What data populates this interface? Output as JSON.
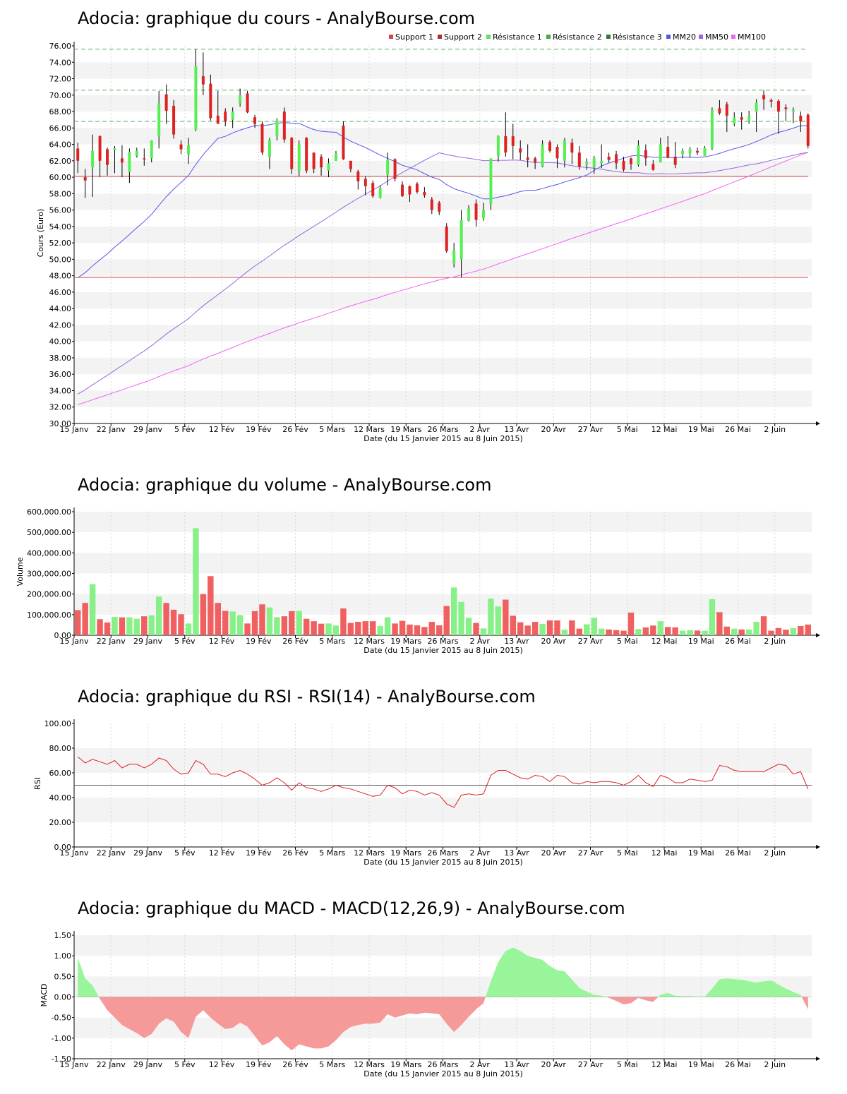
{
  "colors": {
    "up": "#55ee55",
    "down": "#dd2222",
    "vol_up": "#88f088",
    "vol_down": "#f06060",
    "support": "#cc4444",
    "resistance": "#55aa55",
    "mm20": "#5555ee",
    "mm50": "#9966dd",
    "mm100": "#ee66ee",
    "rsi_line": "#dd2222",
    "band": "#f3f3f3",
    "macd_pos": "#99f599",
    "macd_neg": "#f59999"
  },
  "shared": {
    "xlabel": "Date (du 15 Janvier 2015 au 8 Juin 2015)",
    "date_ticks": [
      "15 Janv",
      "22 Janv",
      "29 Janv",
      "5 Fév",
      "12 Fév",
      "19 Fév",
      "26 Fév",
      "5 Mars",
      "12 Mars",
      "19 Mars",
      "26 Mars",
      "2 Avr",
      "13 Avr",
      "20 Avr",
      "27 Avr",
      "5 Mai",
      "12 Mai",
      "19 Mai",
      "26 Mai",
      "2 Juin"
    ],
    "date_tick_index": [
      0,
      5,
      10,
      15,
      20,
      25,
      30,
      35,
      40,
      45,
      50,
      55,
      60,
      65,
      70,
      75,
      80,
      85,
      90,
      95
    ]
  },
  "chart_data": [
    {
      "type": "candlestick",
      "title": "Adocia: graphique du cours - AnalyBourse.com",
      "ylabel": "Cours (Euro)",
      "ylim": [
        30,
        76
      ],
      "yticks": [
        "30.00",
        "32.00",
        "34.00",
        "36.00",
        "38.00",
        "40.00",
        "42.00",
        "44.00",
        "46.00",
        "48.00",
        "50.00",
        "52.00",
        "54.00",
        "56.00",
        "58.00",
        "60.00",
        "62.00",
        "64.00",
        "66.00",
        "68.00",
        "70.00",
        "72.00",
        "74.00",
        "76.00"
      ],
      "legend": [
        "Support 1",
        "Support 2",
        "Résistance 1",
        "Résistance 2",
        "Résistance 3",
        "MM20",
        "MM50",
        "MM100"
      ],
      "supports": [
        60.1,
        47.8
      ],
      "resistances": [
        66.8,
        70.6,
        75.6
      ],
      "candles": [
        [
          63.5,
          62.0,
          64.2,
          60.5
        ],
        [
          60.0,
          59.6,
          61.0,
          57.5
        ],
        [
          61.2,
          63.2,
          65.2,
          57.6
        ],
        [
          65.0,
          62.0,
          65.1,
          60.0
        ],
        [
          63.4,
          61.5,
          63.6,
          60.2
        ],
        [
          63.3,
          63.5,
          63.8,
          60.5
        ],
        [
          62.3,
          61.8,
          63.9,
          60.0
        ],
        [
          60.6,
          63.1,
          63.5,
          59.3
        ],
        [
          62.6,
          63.2,
          63.6,
          62.4
        ],
        [
          62.3,
          62.2,
          63.5,
          61.4
        ],
        [
          62.3,
          64.5,
          64.5,
          61.8
        ],
        [
          65.0,
          69.0,
          70.5,
          63.5
        ],
        [
          70.1,
          68.1,
          71.3,
          66.5
        ],
        [
          68.7,
          65.2,
          69.4,
          64.7
        ],
        [
          64.0,
          63.4,
          64.5,
          62.8
        ],
        [
          62.8,
          63.9,
          64.8,
          61.6
        ],
        [
          65.8,
          73.5,
          75.6,
          65.6
        ],
        [
          72.3,
          71.3,
          75.2,
          70.0
        ],
        [
          71.4,
          67.2,
          72.5,
          66.9
        ],
        [
          67.5,
          66.5,
          70.5,
          66.5
        ],
        [
          68.0,
          66.8,
          68.4,
          66.2
        ],
        [
          67.0,
          68.0,
          68.5,
          66.0
        ],
        [
          69.0,
          70.0,
          70.8,
          68.6
        ],
        [
          70.2,
          67.9,
          70.5,
          67.8
        ],
        [
          67.3,
          66.5,
          67.6,
          66.0
        ],
        [
          66.5,
          63.0,
          66.8,
          62.7
        ],
        [
          62.5,
          64.5,
          64.8,
          61.0
        ],
        [
          65.0,
          66.9,
          67.2,
          64.5
        ],
        [
          68.0,
          64.6,
          68.5,
          64.2
        ],
        [
          64.8,
          61.0,
          64.9,
          60.4
        ],
        [
          60.8,
          64.0,
          64.5,
          60.1
        ],
        [
          64.8,
          60.8,
          64.9,
          60.5
        ],
        [
          63.0,
          61.0,
          63.0,
          60.5
        ],
        [
          62.5,
          61.2,
          62.8,
          60.2
        ],
        [
          60.8,
          61.7,
          62.3,
          60.0
        ],
        [
          62.0,
          62.9,
          63.2,
          62.0
        ],
        [
          66.3,
          62.2,
          66.8,
          62.1
        ],
        [
          62.0,
          61.0,
          62.0,
          60.6
        ],
        [
          60.7,
          59.5,
          60.9,
          58.5
        ],
        [
          59.8,
          58.9,
          60.1,
          57.8
        ],
        [
          59.3,
          57.7,
          59.6,
          57.5
        ],
        [
          57.5,
          58.7,
          59.0,
          57.4
        ],
        [
          60.3,
          62.1,
          63.0,
          59.0
        ],
        [
          62.2,
          59.8,
          62.3,
          59.5
        ],
        [
          59.1,
          57.7,
          59.5,
          57.6
        ],
        [
          58.9,
          57.9,
          59.0,
          57.0
        ],
        [
          59.2,
          58.2,
          59.4,
          58.0
        ],
        [
          58.2,
          57.8,
          58.8,
          57.5
        ],
        [
          57.3,
          56.0,
          57.6,
          55.5
        ],
        [
          56.9,
          55.8,
          57.1,
          55.4
        ],
        [
          54.0,
          51.0,
          54.4,
          50.8
        ],
        [
          49.5,
          51.1,
          52.0,
          49.0
        ],
        [
          50.0,
          54.8,
          56.0,
          47.8
        ],
        [
          54.7,
          56.2,
          56.6,
          54.6
        ],
        [
          56.8,
          54.8,
          57.3,
          54.0
        ],
        [
          55.0,
          56.0,
          56.9,
          54.7
        ],
        [
          56.7,
          62.3,
          62.3,
          56.0
        ],
        [
          62.6,
          65.0,
          65.1,
          61.9
        ],
        [
          65.0,
          63.0,
          67.9,
          62.5
        ],
        [
          65.0,
          63.8,
          66.5,
          62.2
        ],
        [
          63.5,
          63.0,
          64.5,
          62.1
        ],
        [
          62.4,
          62.1,
          64.0,
          61.2
        ],
        [
          62.3,
          61.8,
          62.5,
          61.0
        ],
        [
          61.3,
          64.0,
          64.5,
          61.2
        ],
        [
          64.3,
          63.2,
          64.5,
          63.0
        ],
        [
          63.7,
          62.3,
          64.0,
          61.1
        ],
        [
          62.0,
          64.5,
          64.8,
          61.2
        ],
        [
          64.2,
          63.0,
          64.7,
          61.6
        ],
        [
          63.0,
          61.3,
          63.8,
          60.9
        ],
        [
          61.5,
          61.9,
          62.3,
          60.9
        ],
        [
          61.2,
          62.3,
          62.6,
          60.4
        ],
        [
          61.7,
          62.0,
          64.0,
          61.1
        ],
        [
          62.5,
          62.1,
          63.0,
          61.8
        ],
        [
          62.8,
          61.7,
          63.2,
          61.0
        ],
        [
          62.0,
          60.9,
          62.5,
          60.7
        ],
        [
          62.3,
          61.6,
          62.4,
          60.9
        ],
        [
          61.5,
          63.9,
          64.5,
          61.3
        ],
        [
          63.3,
          62.3,
          64.0,
          61.4
        ],
        [
          61.6,
          60.9,
          62.1,
          60.8
        ],
        [
          61.8,
          64.0,
          64.8,
          61.8
        ],
        [
          63.7,
          62.4,
          65.0,
          62.3
        ],
        [
          62.5,
          61.5,
          64.3,
          61.1
        ],
        [
          62.8,
          63.2,
          63.5,
          62.3
        ],
        [
          62.9,
          63.4,
          63.7,
          62.4
        ],
        [
          63.2,
          63.0,
          63.6,
          62.7
        ],
        [
          62.6,
          63.6,
          63.8,
          62.6
        ],
        [
          63.5,
          68.2,
          68.5,
          63.3
        ],
        [
          68.4,
          67.8,
          69.4,
          67.6
        ],
        [
          68.9,
          67.5,
          69.2,
          65.5
        ],
        [
          66.5,
          67.3,
          67.9,
          66.2
        ],
        [
          67.3,
          67.0,
          67.9,
          65.8
        ],
        [
          66.8,
          67.5,
          68.1,
          66.5
        ],
        [
          68.0,
          69.1,
          69.5,
          65.5
        ],
        [
          70.0,
          69.5,
          70.6,
          68.2
        ],
        [
          69.4,
          69.2,
          69.6,
          68.5
        ],
        [
          69.3,
          68.0,
          69.5,
          65.3
        ],
        [
          68.5,
          68.3,
          68.9,
          66.8
        ],
        [
          68.0,
          68.2,
          68.5,
          66.6
        ],
        [
          67.5,
          66.8,
          68.0,
          65.5
        ],
        [
          67.6,
          63.8,
          67.8,
          63.5
        ]
      ]
    },
    {
      "type": "bar",
      "title": "Adocia: graphique du volume - AnalyBourse.com",
      "ylabel": "Volume",
      "ylim": [
        0,
        600000
      ],
      "yticks": [
        "0.00",
        "100,000.00",
        "200,000.00",
        "300,000.00",
        "400,000.00",
        "500,000.00",
        "600,000.00"
      ],
      "values": [
        122000,
        157000,
        248000,
        78000,
        62000,
        89000,
        87000,
        87000,
        80000,
        92000,
        97000,
        188000,
        157000,
        124000,
        102000,
        57000,
        520000,
        200000,
        287000,
        157000,
        118000,
        115000,
        98000,
        57000,
        117000,
        150000,
        135000,
        88000,
        92000,
        117000,
        118000,
        80000,
        68000,
        56000,
        57000,
        47000,
        130000,
        60000,
        65000,
        68000,
        68000,
        45000,
        87000,
        57000,
        70000,
        52000,
        48000,
        40000,
        65000,
        48000,
        142000,
        232000,
        162000,
        85000,
        60000,
        33000,
        178000,
        140000,
        173000,
        95000,
        63000,
        47000,
        65000,
        55000,
        72000,
        72000,
        27000,
        72000,
        32000,
        53000,
        85000,
        32000,
        28000,
        25000,
        22000,
        110000,
        30000,
        38000,
        47000,
        68000,
        40000,
        38000,
        22000,
        25000,
        23000,
        22000,
        175000,
        112000,
        42000,
        32000,
        28000,
        28000,
        65000,
        92000,
        22000,
        35000,
        27000,
        35000,
        45000,
        52000
      ]
    },
    {
      "type": "line",
      "title": "Adocia: graphique du RSI - RSI(14) - AnalyBourse.com",
      "ylabel": "RSI",
      "ylim": [
        0,
        100
      ],
      "yticks": [
        "0.00",
        "20.00",
        "40.00",
        "60.00",
        "80.00",
        "100.00"
      ],
      "reference": 50,
      "values": [
        73,
        68,
        71,
        69,
        67,
        70,
        64,
        67,
        67,
        64,
        67,
        72,
        70,
        63,
        59,
        60,
        70,
        67,
        59,
        59,
        57,
        60,
        62,
        59,
        55,
        50,
        52,
        56,
        52,
        46,
        52,
        48,
        47,
        45,
        47,
        50,
        48,
        47,
        45,
        43,
        41,
        42,
        50,
        48,
        43,
        46,
        45,
        42,
        44,
        42,
        35,
        32,
        42,
        43,
        42,
        43,
        58,
        62,
        62,
        59,
        56,
        55,
        58,
        57,
        53,
        58,
        57,
        52,
        51,
        53,
        52,
        53,
        53,
        52,
        50,
        53,
        58,
        52,
        49,
        58,
        56,
        52,
        52,
        55,
        54,
        53,
        54,
        66,
        65,
        62,
        61,
        61,
        61,
        61,
        64,
        67,
        66,
        59,
        61,
        47
      ]
    },
    {
      "type": "area",
      "title": "Adocia: graphique du MACD - MACD(12,26,9) - AnalyBourse.com",
      "ylabel": "MACD",
      "ylim": [
        -1.5,
        1.5
      ],
      "yticks": [
        "-1.50",
        "-1.00",
        "-0.50",
        "0.00",
        "0.50",
        "1.00",
        "1.50"
      ],
      "values": [
        0.95,
        0.45,
        0.28,
        -0.05,
        -0.32,
        -0.5,
        -0.68,
        -0.78,
        -0.88,
        -1.0,
        -0.9,
        -0.65,
        -0.52,
        -0.6,
        -0.85,
        -1.0,
        -0.48,
        -0.32,
        -0.5,
        -0.65,
        -0.78,
        -0.75,
        -0.62,
        -0.72,
        -0.95,
        -1.18,
        -1.1,
        -0.95,
        -1.15,
        -1.3,
        -1.15,
        -1.2,
        -1.25,
        -1.25,
        -1.2,
        -1.05,
        -0.85,
        -0.73,
        -0.68,
        -0.65,
        -0.65,
        -0.62,
        -0.42,
        -0.5,
        -0.45,
        -0.4,
        -0.42,
        -0.38,
        -0.4,
        -0.42,
        -0.65,
        -0.85,
        -0.68,
        -0.48,
        -0.3,
        -0.15,
        0.38,
        0.85,
        1.12,
        1.2,
        1.12,
        1.0,
        0.95,
        0.9,
        0.75,
        0.65,
        0.62,
        0.42,
        0.22,
        0.13,
        0.05,
        0.03,
        -0.02,
        -0.1,
        -0.18,
        -0.15,
        -0.02,
        -0.08,
        -0.12,
        0.05,
        0.1,
        0.03,
        0.02,
        0.02,
        0.01,
        0.01,
        0.2,
        0.43,
        0.45,
        0.43,
        0.42,
        0.38,
        0.35,
        0.38,
        0.4,
        0.3,
        0.2,
        0.12,
        0.05,
        -0.3
      ]
    }
  ]
}
